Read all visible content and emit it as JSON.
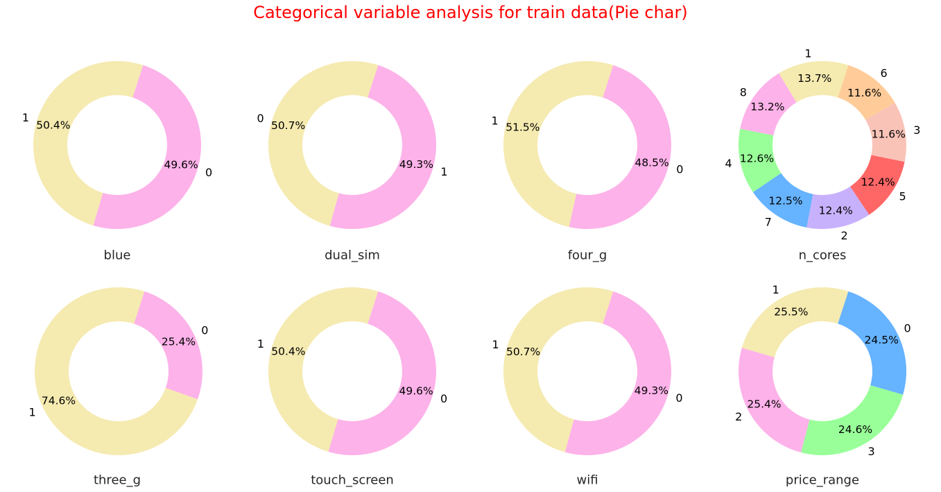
{
  "title": "Categorical variable analysis for train data(Pie char)",
  "colors": {
    "title": "#ff0000",
    "yellow": "#f5eab0",
    "pink": "#fdb2e9",
    "blue": "#66b3ff",
    "green": "#99ff99",
    "purple": "#c8b1fc",
    "red": "#ff6666",
    "salmon": "#f9c3b8",
    "orange": "#ffcc99"
  },
  "chart_data": [
    {
      "type": "pie",
      "title": "blue",
      "donut": true,
      "slices": [
        {
          "label": "1",
          "value": 50.4,
          "pct": "50.4%",
          "color": "#f5eab0"
        },
        {
          "label": "0",
          "value": 49.6,
          "pct": "49.6%",
          "color": "#fdb2e9"
        }
      ]
    },
    {
      "type": "pie",
      "title": "dual_sim",
      "donut": true,
      "slices": [
        {
          "label": "0",
          "value": 50.7,
          "pct": "50.7%",
          "color": "#f5eab0"
        },
        {
          "label": "1",
          "value": 49.3,
          "pct": "49.3%",
          "color": "#fdb2e9"
        }
      ]
    },
    {
      "type": "pie",
      "title": "four_g",
      "donut": true,
      "slices": [
        {
          "label": "1",
          "value": 51.5,
          "pct": "51.5%",
          "color": "#f5eab0"
        },
        {
          "label": "0",
          "value": 48.5,
          "pct": "48.5%",
          "color": "#fdb2e9"
        }
      ]
    },
    {
      "type": "pie",
      "title": "n_cores",
      "donut": true,
      "slices": [
        {
          "label": "1",
          "value": 13.7,
          "pct": "13.7%",
          "color": "#f5eab0"
        },
        {
          "label": "8",
          "value": 13.2,
          "pct": "13.2%",
          "color": "#fdb2e9"
        },
        {
          "label": "4",
          "value": 12.6,
          "pct": "12.6%",
          "color": "#99ff99"
        },
        {
          "label": "7",
          "value": 12.5,
          "pct": "12.5%",
          "color": "#66b3ff"
        },
        {
          "label": "2",
          "value": 12.4,
          "pct": "12.4%",
          "color": "#c8b1fc"
        },
        {
          "label": "5",
          "value": 12.4,
          "pct": "12.4%",
          "color": "#ff6666"
        },
        {
          "label": "3",
          "value": 11.6,
          "pct": "11.6%",
          "color": "#f9c3b8"
        },
        {
          "label": "6",
          "value": 11.6,
          "pct": "11.6%",
          "color": "#ffcc99"
        }
      ]
    },
    {
      "type": "pie",
      "title": "three_g",
      "donut": true,
      "slices": [
        {
          "label": "1",
          "value": 74.6,
          "pct": "74.6%",
          "color": "#f5eab0"
        },
        {
          "label": "0",
          "value": 25.4,
          "pct": "25.4%",
          "color": "#fdb2e9"
        }
      ]
    },
    {
      "type": "pie",
      "title": "touch_screen",
      "donut": true,
      "slices": [
        {
          "label": "1",
          "value": 50.4,
          "pct": "50.4%",
          "color": "#f5eab0"
        },
        {
          "label": "0",
          "value": 49.6,
          "pct": "49.6%",
          "color": "#fdb2e9"
        }
      ]
    },
    {
      "type": "pie",
      "title": "wifi",
      "donut": true,
      "slices": [
        {
          "label": "1",
          "value": 50.7,
          "pct": "50.7%",
          "color": "#f5eab0"
        },
        {
          "label": "0",
          "value": 49.3,
          "pct": "49.3%",
          "color": "#fdb2e9"
        }
      ]
    },
    {
      "type": "pie",
      "title": "price_range",
      "donut": true,
      "slices": [
        {
          "label": "1",
          "value": 25.5,
          "pct": "25.5%",
          "color": "#f5eab0"
        },
        {
          "label": "2",
          "value": 25.4,
          "pct": "25.4%",
          "color": "#fdb2e9"
        },
        {
          "label": "3",
          "value": 24.6,
          "pct": "24.6%",
          "color": "#99ff99"
        },
        {
          "label": "0",
          "value": 24.5,
          "pct": "24.5%",
          "color": "#66b3ff"
        }
      ]
    }
  ]
}
